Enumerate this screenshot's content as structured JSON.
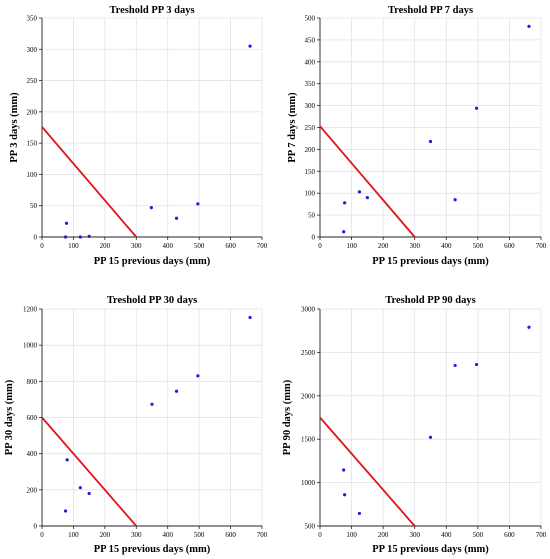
{
  "chart_data": [
    {
      "type": "scatter",
      "title": "Treshold PP 3 days",
      "xlabel": "PP 15 previous days (mm)",
      "ylabel": "PP 3 days (mm)",
      "xlim": [
        0,
        700
      ],
      "ylim": [
        0,
        350
      ],
      "xticks": [
        0,
        100,
        200,
        300,
        400,
        500,
        600,
        700
      ],
      "yticks": [
        0,
        50,
        100,
        150,
        200,
        250,
        300,
        350
      ],
      "grid": true,
      "points": [
        {
          "x": 75,
          "y": 0
        },
        {
          "x": 78,
          "y": 22
        },
        {
          "x": 122,
          "y": 0
        },
        {
          "x": 150,
          "y": 1
        },
        {
          "x": 348,
          "y": 47
        },
        {
          "x": 428,
          "y": 30
        },
        {
          "x": 496,
          "y": 53
        },
        {
          "x": 662,
          "y": 305
        }
      ],
      "threshold_line": {
        "x": [
          0,
          300
        ],
        "y": [
          176,
          0
        ]
      },
      "colors": {
        "points": "#1f1fd6",
        "threshold_line": "#e0141c"
      }
    },
    {
      "type": "scatter",
      "title": "Treshold PP 7 days",
      "xlabel": "PP 15 previous days (mm)",
      "ylabel": "PP 7 days (mm)",
      "xlim": [
        0,
        700
      ],
      "ylim": [
        0,
        500
      ],
      "xticks": [
        0,
        100,
        200,
        300,
        400,
        500,
        600,
        700
      ],
      "yticks": [
        0,
        50,
        100,
        150,
        200,
        250,
        300,
        350,
        400,
        450,
        500
      ],
      "grid": true,
      "points": [
        {
          "x": 75,
          "y": 12
        },
        {
          "x": 78,
          "y": 78
        },
        {
          "x": 125,
          "y": 103
        },
        {
          "x": 150,
          "y": 90
        },
        {
          "x": 350,
          "y": 218
        },
        {
          "x": 428,
          "y": 85
        },
        {
          "x": 496,
          "y": 294
        },
        {
          "x": 662,
          "y": 481
        }
      ],
      "threshold_line": {
        "x": [
          0,
          300
        ],
        "y": [
          253,
          0
        ]
      },
      "colors": {
        "points": "#1f1fd6",
        "threshold_line": "#e0141c"
      }
    },
    {
      "type": "scatter",
      "title": "Treshold PP 30 days",
      "xlabel": "PP 15 previous days (mm)",
      "ylabel": "PP 30 days (mm)",
      "xlim": [
        0,
        700
      ],
      "ylim": [
        0,
        1200
      ],
      "xticks": [
        0,
        100,
        200,
        300,
        400,
        500,
        600,
        700
      ],
      "yticks": [
        0,
        200,
        400,
        600,
        800,
        1000,
        1200
      ],
      "grid": true,
      "points": [
        {
          "x": 75,
          "y": 83
        },
        {
          "x": 80,
          "y": 366
        },
        {
          "x": 122,
          "y": 212
        },
        {
          "x": 150,
          "y": 180
        },
        {
          "x": 350,
          "y": 673
        },
        {
          "x": 428,
          "y": 745
        },
        {
          "x": 496,
          "y": 830
        },
        {
          "x": 662,
          "y": 1153
        }
      ],
      "threshold_line": {
        "x": [
          0,
          300
        ],
        "y": [
          600,
          0
        ]
      },
      "colors": {
        "points": "#1f1fd6",
        "threshold_line": "#e0141c"
      }
    },
    {
      "type": "scatter",
      "title": "Treshold PP 90 days",
      "xlabel": "PP 15 previous days (mm)",
      "ylabel": "PP 90 days (mm)",
      "xlim": [
        0,
        700
      ],
      "ylim": [
        500,
        3000
      ],
      "xticks": [
        0,
        100,
        200,
        300,
        400,
        500,
        600,
        700
      ],
      "yticks": [
        500,
        1000,
        1500,
        2000,
        2500,
        3000
      ],
      "grid": true,
      "points": [
        {
          "x": 75,
          "y": 1145
        },
        {
          "x": 78,
          "y": 860
        },
        {
          "x": 125,
          "y": 645
        },
        {
          "x": 350,
          "y": 1522
        },
        {
          "x": 428,
          "y": 2350
        },
        {
          "x": 496,
          "y": 2360
        },
        {
          "x": 662,
          "y": 2790
        }
      ],
      "threshold_line": {
        "x": [
          0,
          300
        ],
        "y": [
          1750,
          500
        ]
      },
      "colors": {
        "points": "#1f1fd6",
        "threshold_line": "#e0141c"
      }
    }
  ]
}
